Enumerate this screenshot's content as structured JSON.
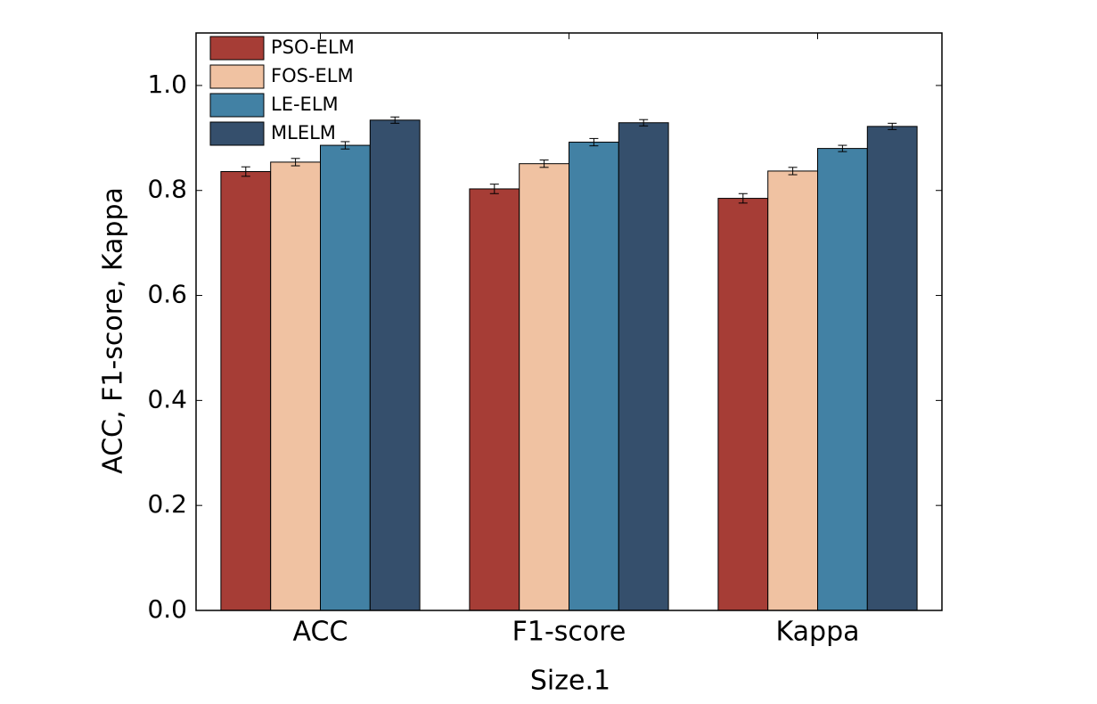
{
  "chart_data": {
    "type": "bar",
    "xlabel": "Size.1",
    "ylabel": "ACC, F1-score, Kappa",
    "categories": [
      "ACC",
      "F1-score",
      "Kappa"
    ],
    "series": [
      {
        "name": "PSO-ELM",
        "color": "#a63d36",
        "values": [
          0.836,
          0.803,
          0.785
        ],
        "errors": [
          0.009,
          0.009,
          0.009
        ]
      },
      {
        "name": "FOS-ELM",
        "color": "#f0c2a2",
        "values": [
          0.854,
          0.851,
          0.837
        ],
        "errors": [
          0.007,
          0.007,
          0.007
        ]
      },
      {
        "name": "LE-ELM",
        "color": "#4281a4",
        "values": [
          0.886,
          0.892,
          0.88
        ],
        "errors": [
          0.007,
          0.007,
          0.006
        ]
      },
      {
        "name": "MLELM",
        "color": "#354f6c",
        "values": [
          0.934,
          0.929,
          0.922
        ],
        "errors": [
          0.006,
          0.006,
          0.006
        ]
      }
    ],
    "ylim": [
      0,
      1.1
    ],
    "yticks": [
      {
        "value": 0,
        "label": "0.0"
      },
      0.2,
      0.4,
      0.6,
      0.8,
      {
        "value": 1,
        "label": "1.0"
      }
    ],
    "grid": false,
    "legend": "upper left"
  }
}
